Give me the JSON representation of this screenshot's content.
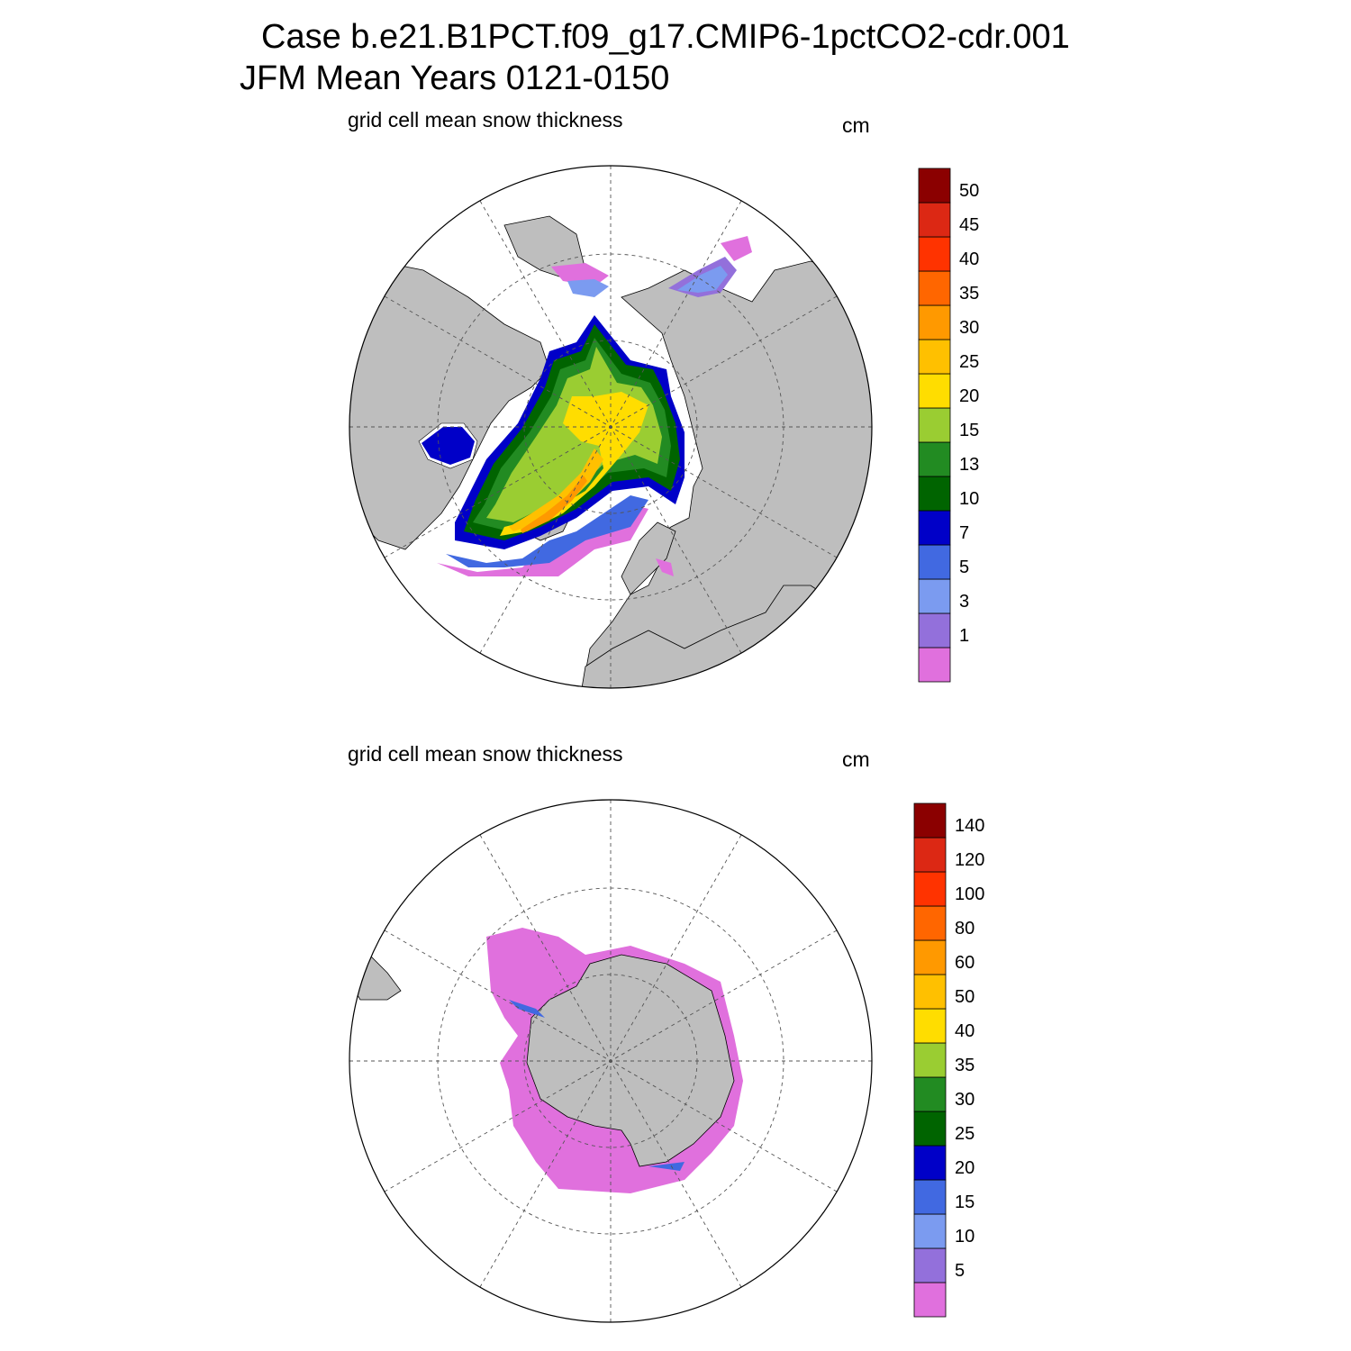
{
  "header": {
    "line1": "Case b.e21.B1PCT.f09_g17.CMIP6-1pctCO2-cdr.001",
    "line2": "JFM Mean    Years 0121-0150"
  },
  "colors": {
    "land": "#bebebe",
    "ocean": "#ffffff",
    "scale": [
      "#e070dd",
      "#9370db",
      "#7b9bf0",
      "#4169e1",
      "#0000c8",
      "#006400",
      "#228b22",
      "#9acd32",
      "#ffdd00",
      "#ffc000",
      "#ff9900",
      "#ff6600",
      "#ff3300",
      "#dc2814",
      "#8b0000"
    ]
  },
  "panels": [
    {
      "id": "north",
      "hemisphere": "Northern Hemisphere",
      "label": "grid cell mean snow thickness",
      "units": "cm",
      "colorbar_labels": [
        "1",
        "3",
        "5",
        "7",
        "10",
        "13",
        "15",
        "20",
        "25",
        "30",
        "35",
        "40",
        "45",
        "50"
      ]
    },
    {
      "id": "south",
      "hemisphere": "Southern Hemisphere",
      "label": "grid cell mean snow thickness",
      "units": "cm",
      "colorbar_labels": [
        "5",
        "10",
        "15",
        "20",
        "25",
        "30",
        "35",
        "40",
        "50",
        "60",
        "80",
        "100",
        "120",
        "140"
      ]
    }
  ]
}
